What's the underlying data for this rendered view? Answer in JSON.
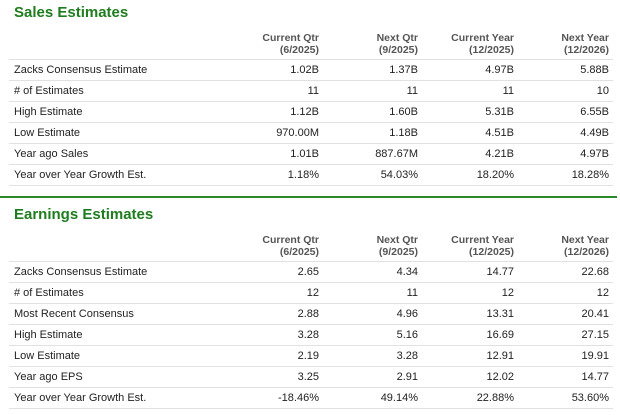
{
  "sales": {
    "title": "Sales Estimates",
    "columns": [
      {
        "name": "Current Qtr",
        "period": "(6/2025)"
      },
      {
        "name": "Next Qtr",
        "period": "(9/2025)"
      },
      {
        "name": "Current Year",
        "period": "(12/2025)"
      },
      {
        "name": "Next Year",
        "period": "(12/2026)"
      }
    ],
    "rows": [
      {
        "label": "Zacks Consensus Estimate",
        "values": [
          "1.02B",
          "1.37B",
          "4.97B",
          "5.88B"
        ]
      },
      {
        "label": "# of Estimates",
        "values": [
          "11",
          "11",
          "11",
          "10"
        ]
      },
      {
        "label": "High Estimate",
        "values": [
          "1.12B",
          "1.60B",
          "5.31B",
          "6.55B"
        ]
      },
      {
        "label": "Low Estimate",
        "values": [
          "970.00M",
          "1.18B",
          "4.51B",
          "4.49B"
        ]
      },
      {
        "label": "Year ago Sales",
        "values": [
          "1.01B",
          "887.67M",
          "4.21B",
          "4.97B"
        ]
      },
      {
        "label": "Year over Year Growth Est.",
        "values": [
          "1.18%",
          "54.03%",
          "18.20%",
          "18.28%"
        ]
      }
    ]
  },
  "earnings": {
    "title": "Earnings Estimates",
    "columns": [
      {
        "name": "Current Qtr",
        "period": "(6/2025)"
      },
      {
        "name": "Next Qtr",
        "period": "(9/2025)"
      },
      {
        "name": "Current Year",
        "period": "(12/2025)"
      },
      {
        "name": "Next Year",
        "period": "(12/2026)"
      }
    ],
    "rows": [
      {
        "label": "Zacks Consensus Estimate",
        "values": [
          "2.65",
          "4.34",
          "14.77",
          "22.68"
        ]
      },
      {
        "label": "# of Estimates",
        "values": [
          "12",
          "11",
          "12",
          "12"
        ]
      },
      {
        "label": "Most Recent Consensus",
        "values": [
          "2.88",
          "4.96",
          "13.31",
          "20.41"
        ]
      },
      {
        "label": "High Estimate",
        "values": [
          "3.28",
          "5.16",
          "16.69",
          "27.15"
        ]
      },
      {
        "label": "Low Estimate",
        "values": [
          "2.19",
          "3.28",
          "12.91",
          "19.91"
        ]
      },
      {
        "label": "Year ago EPS",
        "values": [
          "3.25",
          "2.91",
          "12.02",
          "14.77"
        ]
      },
      {
        "label": "Year over Year Growth Est.",
        "values": [
          "-18.46%",
          "49.14%",
          "22.88%",
          "53.60%"
        ]
      }
    ]
  },
  "colors": {
    "title_green": "#1e7d1e",
    "rule_green": "#2a8a2a",
    "row_border": "#e1e1e1",
    "header_text": "#555555"
  }
}
